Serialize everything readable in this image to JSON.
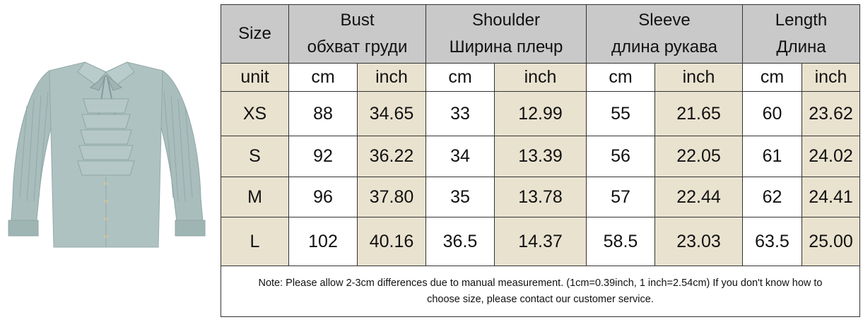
{
  "colors": {
    "header_bg": "#c9c9c9",
    "beige": "#e9e2cf",
    "blouse": "#a4bab9"
  },
  "product_image": {
    "description_icon": "blouse-icon"
  },
  "table": {
    "size_header": "Size",
    "groups": [
      {
        "en": "Bust",
        "ru": "обхват груди"
      },
      {
        "en": "Shoulder",
        "ru": "Ширина плечр"
      },
      {
        "en": "Sleeve",
        "ru": "длина рукава"
      },
      {
        "en": "Length",
        "ru": "Длина"
      }
    ],
    "unit_label": "unit",
    "cm": "cm",
    "inch": "inch",
    "rows": [
      {
        "size": "XS",
        "values": [
          "88",
          "34.65",
          "33",
          "12.99",
          "55",
          "21.65",
          "60",
          "23.62"
        ]
      },
      {
        "size": "S",
        "values": [
          "92",
          "36.22",
          "34",
          "13.39",
          "56",
          "22.05",
          "61",
          "24.02"
        ]
      },
      {
        "size": "M",
        "values": [
          "96",
          "37.80",
          "35",
          "13.78",
          "57",
          "22.44",
          "62",
          "24.41"
        ]
      },
      {
        "size": "L",
        "values": [
          "102",
          "40.16",
          "36.5",
          "14.37",
          "58.5",
          "23.03",
          "63.5",
          "25.00"
        ]
      }
    ],
    "note_line1": "Note: Please allow 2-3cm differences due to manual measurement. (1cm=0.39inch, 1 inch=2.54cm)  If you don't know how to",
    "note_line2": "choose size, please contact our customer service."
  }
}
